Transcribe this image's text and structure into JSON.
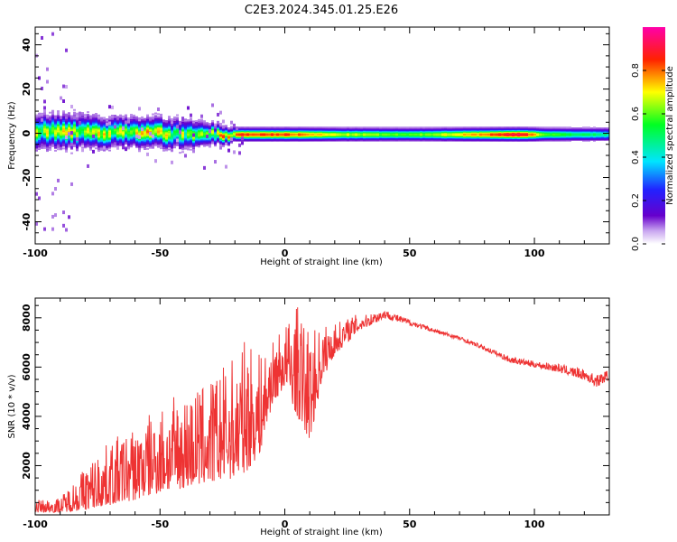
{
  "figure_title": "C2E3.2024.345.01.25.E26",
  "chart_data": [
    {
      "type": "heatmap",
      "xlabel": "Height of straight line (km)",
      "ylabel": "Frequency (Hz)",
      "xlim": [
        -100,
        130
      ],
      "ylim": [
        -50,
        48
      ],
      "xticks": [
        -100,
        -50,
        0,
        50,
        100
      ],
      "yticks": [
        -40,
        -20,
        0,
        20,
        40
      ],
      "colorbar": {
        "label": "Normalized spectral amplitude",
        "range": [
          0,
          1
        ],
        "ticks": [
          0.0,
          0.2,
          0.4,
          0.6,
          0.8
        ],
        "colormap": [
          "#ffffff",
          "#6600cc",
          "#2222ff",
          "#00e5ff",
          "#00ff22",
          "#ffff00",
          "#ff2200",
          "#ff00aa"
        ]
      },
      "grid": false,
      "ridge": {
        "description_free_values": true,
        "center_freq_hz": [
          [
            -100,
            2
          ],
          [
            -80,
            1
          ],
          [
            -60,
            1
          ],
          [
            -40,
            0
          ],
          [
            -20,
            0
          ],
          [
            0,
            0
          ],
          [
            20,
            0
          ],
          [
            50,
            0
          ],
          [
            100,
            0
          ],
          [
            130,
            0
          ]
        ],
        "bandwidth_hz": [
          [
            -100,
            7
          ],
          [
            -60,
            6
          ],
          [
            -40,
            6
          ],
          [
            -20,
            3
          ],
          [
            0,
            3
          ],
          [
            50,
            3
          ],
          [
            100,
            3
          ],
          [
            130,
            3
          ]
        ],
        "peak_amplitude": [
          [
            -100,
            0.6
          ],
          [
            -60,
            0.7
          ],
          [
            -30,
            0.55
          ],
          [
            -20,
            0.85
          ],
          [
            0,
            0.85
          ],
          [
            20,
            0.7
          ],
          [
            50,
            0.6
          ],
          [
            85,
            0.85
          ],
          [
            95,
            0.95
          ],
          [
            105,
            0.6
          ],
          [
            130,
            0.5
          ]
        ]
      }
    },
    {
      "type": "line",
      "xlabel": "Height of straight line (km)",
      "ylabel": "SNR (10 * v/v)",
      "xlim": [
        -100,
        130
      ],
      "ylim": [
        0,
        8800
      ],
      "xticks": [
        -100,
        -50,
        0,
        50,
        100
      ],
      "yticks": [
        2000,
        4000,
        6000,
        8000
      ],
      "color": "#ee3333",
      "grid": false,
      "envelope": {
        "x": [
          -100,
          -90,
          -80,
          -70,
          -60,
          -50,
          -40,
          -30,
          -20,
          -15,
          -10,
          -5,
          0,
          5,
          10,
          15,
          20,
          30,
          40,
          50,
          60,
          70,
          80,
          90,
          100,
          110,
          120,
          125,
          130
        ],
        "low": [
          100,
          100,
          200,
          400,
          600,
          900,
          1100,
          1300,
          1500,
          1800,
          2500,
          4500,
          5200,
          4000,
          3000,
          5500,
          6500,
          7500,
          8000,
          7700,
          7400,
          7100,
          6700,
          6200,
          6000,
          5800,
          5500,
          5200,
          5500
        ],
        "high": [
          600,
          700,
          2000,
          3000,
          3600,
          4500,
          5000,
          5500,
          6500,
          7200,
          6500,
          7000,
          7800,
          8500,
          7500,
          7700,
          7800,
          8200,
          8400,
          8000,
          7600,
          7300,
          6900,
          6500,
          6300,
          6200,
          6000,
          5800,
          6000
        ]
      }
    }
  ]
}
